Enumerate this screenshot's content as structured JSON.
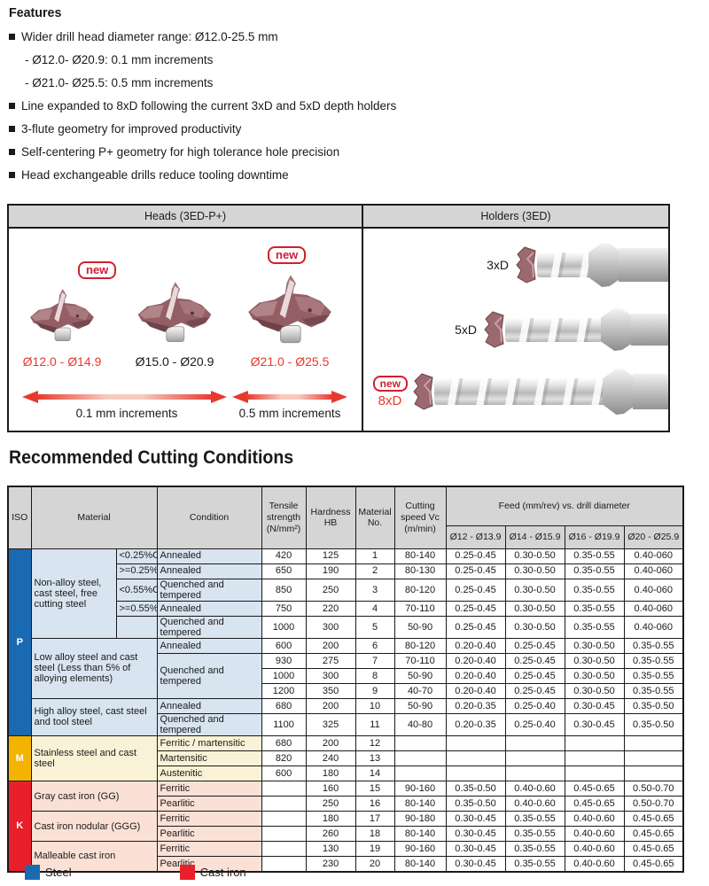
{
  "features": {
    "title": "Features",
    "items": [
      {
        "text": "Wider drill head diameter range: Ø12.0-25.5 mm",
        "subs": [
          "- Ø12.0- Ø20.9: 0.1 mm increments",
          "- Ø21.0- Ø25.5: 0.5 mm increments"
        ]
      },
      {
        "text": "Line expanded to 8xD following the current 3xD and 5xD depth holders",
        "subs": []
      },
      {
        "text": "3-flute geometry for improved productivity",
        "subs": []
      },
      {
        "text": "Self-centering P+ geometry for high tolerance hole precision",
        "subs": []
      },
      {
        "text": "Head exchangeable drills reduce tooling downtime",
        "subs": []
      }
    ]
  },
  "diagram": {
    "heads_panel_title": "Heads (3ED-P+)",
    "holders_panel_title": "Holders (3ED)",
    "new_badge": "new",
    "heads": [
      {
        "range": "Ø12.0 - Ø14.9",
        "is_new": true
      },
      {
        "range": "Ø15.0 - Ø20.9",
        "is_new": false
      },
      {
        "range": "Ø21.0 - Ø25.5",
        "is_new": true
      }
    ],
    "increments": [
      {
        "label": "0.1 mm increments"
      },
      {
        "label": "0.5 mm increments"
      }
    ],
    "holders": [
      {
        "label": "3xD",
        "is_new": false
      },
      {
        "label": "5xD",
        "is_new": false
      },
      {
        "label": "8xD",
        "is_new": true
      }
    ]
  },
  "table": {
    "title": "Recommended Cutting Conditions",
    "col_headers": {
      "iso": "ISO",
      "material": "Material",
      "condition": "Condition",
      "tensile": "Tensile strength (N/mm²)",
      "hardness": "Hardness HB",
      "material_no": "Material No.",
      "cutting_speed": "Cutting speed Vc (m/min)",
      "feed_group": "Feed (mm/rev) vs. drill diameter",
      "feed_cols": [
        "Ø12 - Ø13.9",
        "Ø14 - Ø15.9",
        "Ø16 - Ø19.9",
        "Ø20 - Ø25.9"
      ]
    },
    "rows": [
      [
        {
          "t": "P",
          "rs": 11,
          "cls": "iso isoP"
        },
        {
          "t": "Non-alloy steel, cast steel, free cutting steel",
          "rs": 5,
          "cls": "mat bgP"
        },
        {
          "t": "<0.25%C",
          "cls": "sub bgP subU"
        },
        {
          "t": "Annealed",
          "cls": "cond bgP"
        },
        "420",
        "125",
        "1",
        "80-140",
        "0.25-0.45",
        "0.30-0.50",
        "0.35-0.55",
        "0.40-060"
      ],
      [
        {
          "t": ">=0.25%C",
          "cls": "sub bgP subU"
        },
        {
          "t": "Annealed",
          "cls": "cond bgP"
        },
        "650",
        "190",
        "2",
        "80-130",
        "0.25-0.45",
        "0.30-0.50",
        "0.35-0.55",
        "0.40-060"
      ],
      [
        {
          "t": "<0.55%C",
          "cls": "sub bgP subU"
        },
        {
          "t": "Quenched and tempered",
          "cls": "cond bgP"
        },
        "850",
        "250",
        "3",
        "80-120",
        "0.25-0.45",
        "0.30-0.50",
        "0.35-0.55",
        "0.40-060"
      ],
      [
        {
          "t": ">=0.55%C",
          "cls": "sub bgP subU"
        },
        {
          "t": "Annealed",
          "cls": "cond bgP"
        },
        "750",
        "220",
        "4",
        "70-110",
        "0.25-0.45",
        "0.30-0.50",
        "0.35-0.55",
        "0.40-060"
      ],
      [
        {
          "t": "",
          "cls": "sub bgP"
        },
        {
          "t": "Quenched and tempered",
          "cls": "cond bgP"
        },
        "1000",
        "300",
        "5",
        "50-90",
        "0.25-0.45",
        "0.30-0.50",
        "0.35-0.55",
        "0.40-060"
      ],
      [
        {
          "t": "Low alloy steel and cast steel (Less than 5% of alloying elements)",
          "rs": 4,
          "cs": 2,
          "cls": "mat bgP"
        },
        {
          "t": "Annealed",
          "cls": "cond bgP"
        },
        "600",
        "200",
        "6",
        "80-120",
        "0.20-0.40",
        "0.25-0.45",
        "0.30-0.50",
        "0.35-0.55"
      ],
      [
        {
          "t": "Quenched and tempered",
          "rs": 3,
          "cls": "cond bgP"
        },
        "930",
        "275",
        "7",
        "70-110",
        "0.20-0.40",
        "0.25-0.45",
        "0.30-0.50",
        "0.35-0.55"
      ],
      [
        "1000",
        "300",
        "8",
        "50-90",
        "0.20-0.40",
        "0.25-0.45",
        "0.30-0.50",
        "0.35-0.55"
      ],
      [
        "1200",
        "350",
        "9",
        "40-70",
        "0.20-0.40",
        "0.25-0.45",
        "0.30-0.50",
        "0.35-0.55"
      ],
      [
        {
          "t": "High alloy steel, cast steel and tool steel",
          "rs": 2,
          "cs": 2,
          "cls": "mat bgP"
        },
        {
          "t": "Annealed",
          "cls": "cond bgP"
        },
        "680",
        "200",
        "10",
        "50-90",
        "0.20-0.35",
        "0.25-0.40",
        "0.30-0.45",
        "0.35-0.50"
      ],
      [
        {
          "t": "Quenched and tempered",
          "cls": "cond bgP"
        },
        "1100",
        "325",
        "11",
        "40-80",
        "0.20-0.35",
        "0.25-0.40",
        "0.30-0.45",
        "0.35-0.50"
      ],
      [
        {
          "t": "M",
          "rs": 3,
          "cls": "iso isoM"
        },
        {
          "t": "Stainless steel and cast steel",
          "rs": 3,
          "cs": 2,
          "cls": "mat bgM"
        },
        {
          "t": "Ferritic / martensitic",
          "cls": "cond bgM"
        },
        "680",
        "200",
        "12",
        "",
        "",
        "",
        "",
        ""
      ],
      [
        {
          "t": "Martensitic",
          "cls": "cond bgM"
        },
        "820",
        "240",
        "13",
        "",
        "",
        "",
        "",
        ""
      ],
      [
        {
          "t": "Austenitic",
          "cls": "cond bgM"
        },
        "600",
        "180",
        "14",
        "",
        "",
        "",
        "",
        ""
      ],
      [
        {
          "t": "K",
          "rs": 6,
          "cls": "iso isoK"
        },
        {
          "t": "Gray cast iron (GG)",
          "rs": 2,
          "cs": 2,
          "cls": "mat bgK"
        },
        {
          "t": "Ferritic",
          "cls": "cond bgK"
        },
        "",
        "160",
        "15",
        "90-160",
        "0.35-0.50",
        "0.40-0.60",
        "0.45-0.65",
        "0.50-0.70"
      ],
      [
        {
          "t": "Pearlitic",
          "cls": "cond bgK"
        },
        "",
        "250",
        "16",
        "80-140",
        "0.35-0.50",
        "0.40-0.60",
        "0.45-0.65",
        "0.50-0.70"
      ],
      [
        {
          "t": "Cast iron nodular (GGG)",
          "rs": 2,
          "cs": 2,
          "cls": "mat bgK"
        },
        {
          "t": "Ferritic",
          "cls": "cond bgK"
        },
        "",
        "180",
        "17",
        "90-180",
        "0.30-0.45",
        "0.35-0.55",
        "0.40-0.60",
        "0.45-0.65"
      ],
      [
        {
          "t": "Pearlitic",
          "cls": "cond bgK"
        },
        "",
        "260",
        "18",
        "80-140",
        "0.30-0.45",
        "0.35-0.55",
        "0.40-0.60",
        "0.45-0.65"
      ],
      [
        {
          "t": "Malleable cast iron",
          "rs": 2,
          "cs": 2,
          "cls": "mat bgK"
        },
        {
          "t": "Ferritic",
          "cls": "cond bgK"
        },
        "",
        "130",
        "19",
        "90-160",
        "0.30-0.45",
        "0.35-0.55",
        "0.40-0.60",
        "0.45-0.65"
      ],
      [
        {
          "t": "Pearlitic",
          "cls": "cond bgK"
        },
        "",
        "230",
        "20",
        "80-140",
        "0.30-0.45",
        "0.35-0.55",
        "0.40-0.60",
        "0.45-0.65"
      ]
    ]
  },
  "legend": {
    "items": [
      {
        "label": "Steel",
        "color": "#1a6ab2"
      },
      {
        "label": "Cast iron",
        "color": "#e7202c"
      }
    ]
  },
  "colors": {
    "accent_red": "#e8392f",
    "badge_red": "#cf2030",
    "steel_blue": "#1a6ab2",
    "iso_m_yellow": "#f5b301",
    "cast_iron_red": "#e7202c",
    "bg_p": "#d8e4f0",
    "bg_m": "#faf2d7",
    "bg_k": "#fbe0d5",
    "hdr_gray": "#d5d5d5"
  }
}
